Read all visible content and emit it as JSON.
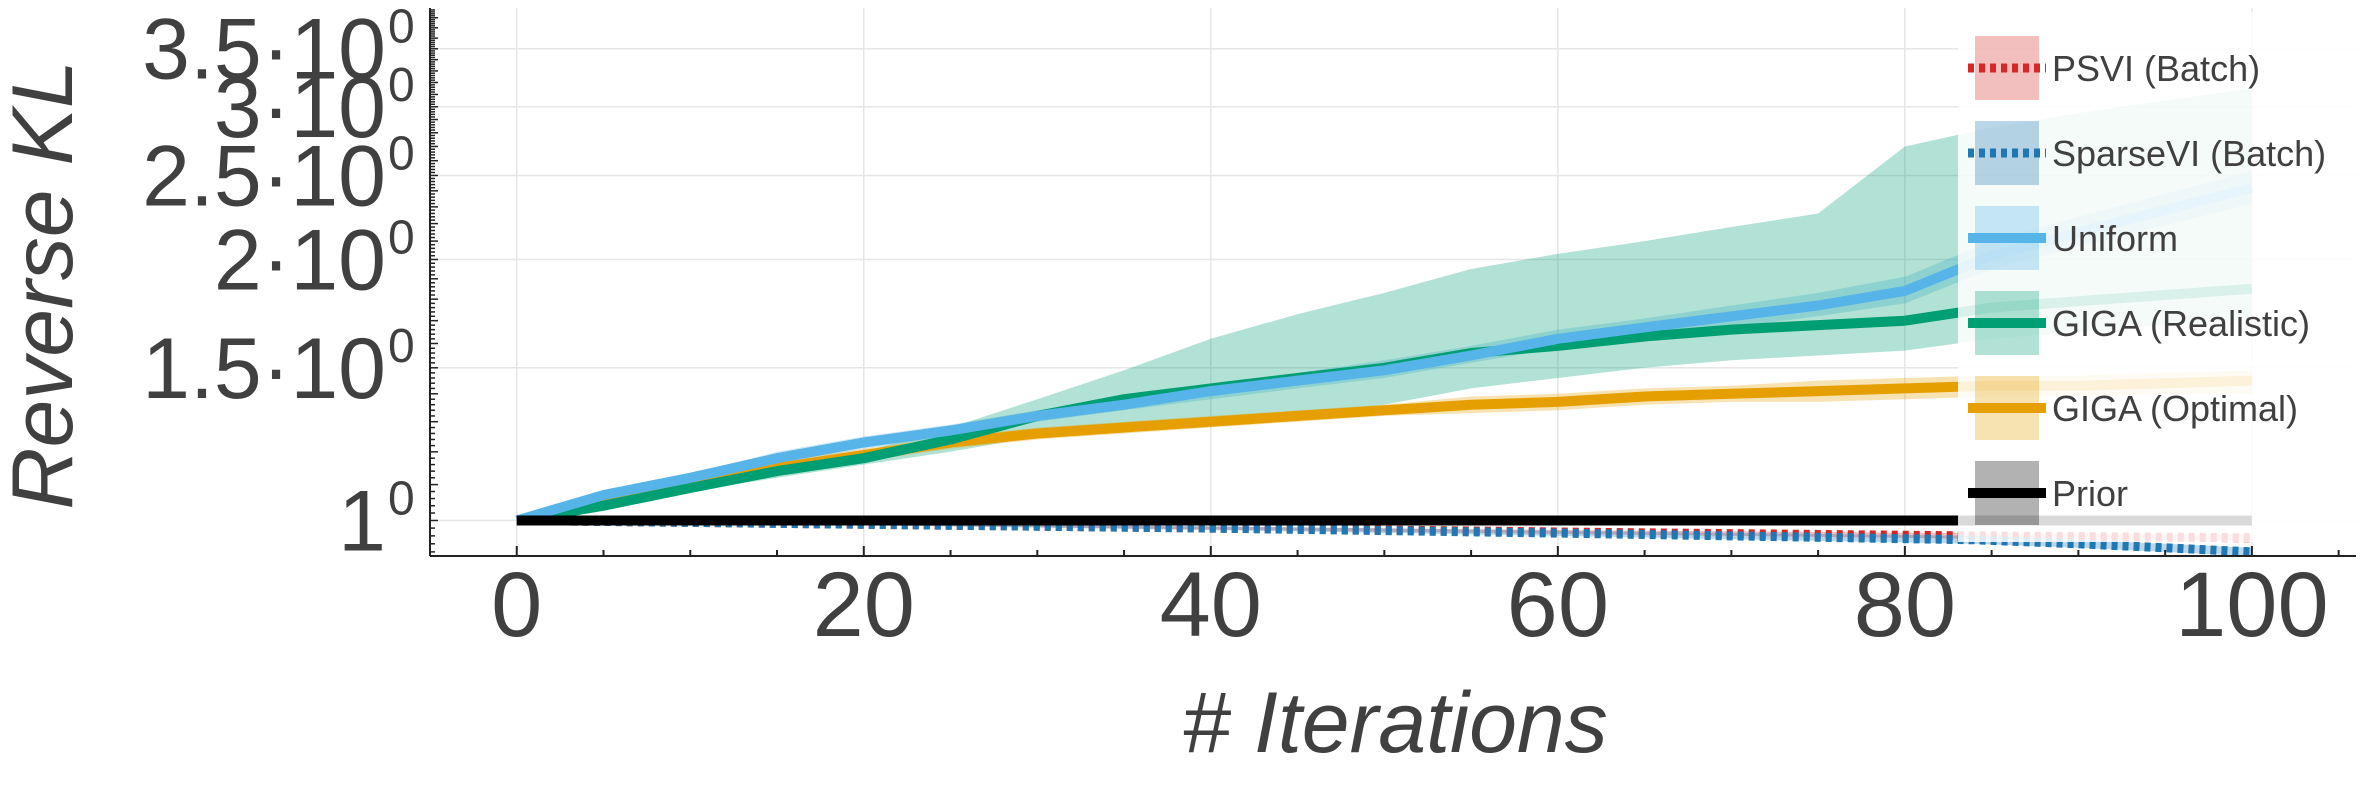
{
  "chart_data": {
    "type": "line",
    "xlabel": "# Iterations",
    "ylabel": "Reverse KL",
    "y_scale": "log",
    "xlim": [
      -5,
      106
    ],
    "ylim": [
      0.91,
      3.9
    ],
    "x_ticks": [
      {
        "value": 0,
        "label": "0"
      },
      {
        "value": 20,
        "label": "20"
      },
      {
        "value": 40,
        "label": "40"
      },
      {
        "value": 60,
        "label": "60"
      },
      {
        "value": 80,
        "label": "80"
      },
      {
        "value": 100,
        "label": "100"
      }
    ],
    "y_ticks": [
      {
        "value": 1.0,
        "mantissa": "1",
        "exponent": "0"
      },
      {
        "value": 1.5,
        "mantissa": "1.5·10",
        "exponent": "0"
      },
      {
        "value": 2.0,
        "mantissa": "2·10",
        "exponent": "0"
      },
      {
        "value": 2.5,
        "mantissa": "2.5·10",
        "exponent": "0"
      },
      {
        "value": 3.0,
        "mantissa": "3·10",
        "exponent": "0"
      },
      {
        "value": 3.5,
        "mantissa": "3.5·10",
        "exponent": "0"
      }
    ],
    "grid": true,
    "legend_position": "top-right",
    "series": [
      {
        "name": "PSVI (Batch)",
        "color": "#d62728",
        "line_style": "dotted",
        "x": [
          0,
          20,
          40,
          60,
          84,
          100
        ],
        "y": [
          1.0,
          0.99,
          0.98,
          0.97,
          0.96,
          0.955
        ],
        "lower": [
          1.0,
          0.988,
          0.976,
          0.965,
          0.953,
          0.947
        ],
        "upper": [
          1.0,
          0.992,
          0.984,
          0.975,
          0.967,
          0.963
        ]
      },
      {
        "name": "SparseVI (Batch)",
        "color": "#1f77b4",
        "line_style": "dotted",
        "x": [
          0,
          20,
          40,
          60,
          84,
          90,
          95,
          100
        ],
        "y": [
          1.0,
          0.99,
          0.98,
          0.967,
          0.95,
          0.94,
          0.93,
          0.92
        ],
        "lower": [
          1.0,
          0.987,
          0.975,
          0.96,
          0.94,
          0.93,
          0.92,
          0.91
        ],
        "upper": [
          1.0,
          0.993,
          0.985,
          0.973,
          0.96,
          0.95,
          0.94,
          0.93
        ]
      },
      {
        "name": "Uniform",
        "color": "#56b4e9",
        "line_style": "solid",
        "x": [
          0,
          5,
          10,
          15,
          20,
          25,
          30,
          35,
          40,
          45,
          50,
          55,
          60,
          65,
          70,
          75,
          80,
          85,
          90,
          95,
          100
        ],
        "y": [
          1.0,
          1.07,
          1.12,
          1.18,
          1.23,
          1.27,
          1.32,
          1.36,
          1.41,
          1.45,
          1.49,
          1.55,
          1.62,
          1.67,
          1.72,
          1.77,
          1.84,
          2.02,
          2.15,
          2.28,
          2.42
        ],
        "lower": [
          1.0,
          1.06,
          1.11,
          1.16,
          1.21,
          1.25,
          1.3,
          1.34,
          1.38,
          1.42,
          1.46,
          1.52,
          1.58,
          1.63,
          1.67,
          1.72,
          1.78,
          1.95,
          2.07,
          2.19,
          2.32
        ],
        "upper": [
          1.0,
          1.08,
          1.13,
          1.2,
          1.25,
          1.29,
          1.34,
          1.39,
          1.44,
          1.48,
          1.53,
          1.59,
          1.66,
          1.71,
          1.77,
          1.83,
          1.91,
          2.1,
          2.24,
          2.38,
          2.53
        ]
      },
      {
        "name": "GIGA (Realistic)",
        "color": "#009e73",
        "line_style": "solid",
        "x": [
          0,
          5,
          10,
          15,
          20,
          25,
          30,
          35,
          40,
          45,
          50,
          55,
          60,
          65,
          70,
          75,
          80,
          85,
          90,
          95,
          100
        ],
        "y": [
          1.0,
          1.04,
          1.09,
          1.14,
          1.18,
          1.24,
          1.32,
          1.38,
          1.42,
          1.46,
          1.5,
          1.56,
          1.59,
          1.63,
          1.66,
          1.68,
          1.7,
          1.76,
          1.79,
          1.82,
          1.85
        ],
        "lower": [
          1.0,
          1.03,
          1.08,
          1.12,
          1.16,
          1.2,
          1.25,
          1.29,
          1.3,
          1.32,
          1.36,
          1.42,
          1.46,
          1.5,
          1.53,
          1.55,
          1.57,
          1.62,
          1.65,
          1.68,
          1.71
        ],
        "upper": [
          1.0,
          1.05,
          1.1,
          1.16,
          1.2,
          1.28,
          1.38,
          1.49,
          1.62,
          1.73,
          1.83,
          1.95,
          2.03,
          2.1,
          2.18,
          2.26,
          2.7,
          2.84,
          2.95,
          3.05,
          3.15
        ]
      },
      {
        "name": "GIGA (Optimal)",
        "color": "#e69f00",
        "line_style": "solid",
        "x": [
          0,
          5,
          10,
          15,
          20,
          25,
          30,
          35,
          40,
          45,
          50,
          55,
          60,
          65,
          70,
          75,
          80,
          85,
          90,
          95,
          100
        ],
        "y": [
          1.0,
          1.05,
          1.1,
          1.15,
          1.19,
          1.23,
          1.26,
          1.28,
          1.3,
          1.32,
          1.34,
          1.36,
          1.37,
          1.39,
          1.4,
          1.41,
          1.42,
          1.43,
          1.43,
          1.44,
          1.45
        ],
        "lower": [
          1.0,
          1.045,
          1.09,
          1.13,
          1.17,
          1.21,
          1.24,
          1.26,
          1.28,
          1.3,
          1.32,
          1.33,
          1.34,
          1.36,
          1.37,
          1.37,
          1.38,
          1.39,
          1.39,
          1.4,
          1.4
        ],
        "upper": [
          1.0,
          1.055,
          1.11,
          1.17,
          1.21,
          1.25,
          1.28,
          1.3,
          1.32,
          1.34,
          1.36,
          1.39,
          1.4,
          1.42,
          1.43,
          1.45,
          1.46,
          1.47,
          1.47,
          1.48,
          1.49
        ]
      },
      {
        "name": "Prior",
        "color": "#000000",
        "line_style": "solid",
        "x": [
          0,
          100
        ],
        "y": [
          1.0,
          1.0
        ],
        "lower": [
          1.0,
          1.0
        ],
        "upper": [
          1.0,
          1.0
        ]
      }
    ]
  }
}
